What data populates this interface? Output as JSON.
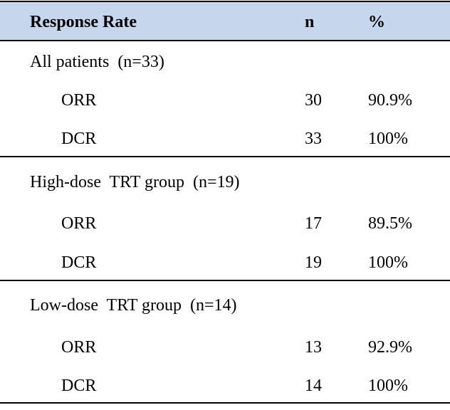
{
  "table": {
    "header": [
      "Response Rate",
      "n",
      "%"
    ],
    "sections": [
      {
        "title": "All patients  (n=33)",
        "rows": [
          [
            "ORR",
            "30",
            "90.9%"
          ],
          [
            "DCR",
            "33",
            "100%"
          ]
        ]
      },
      {
        "title": "High-dose  TRT group  (n=19)",
        "rows": [
          [
            "ORR",
            "17",
            "89.5%"
          ],
          [
            "DCR",
            "19",
            "100%"
          ]
        ]
      },
      {
        "title": "Low-dose  TRT group  (n=14)",
        "rows": [
          [
            "ORR",
            "13",
            "92.9%"
          ],
          [
            "DCR",
            "14",
            "100%"
          ]
        ]
      }
    ]
  }
}
